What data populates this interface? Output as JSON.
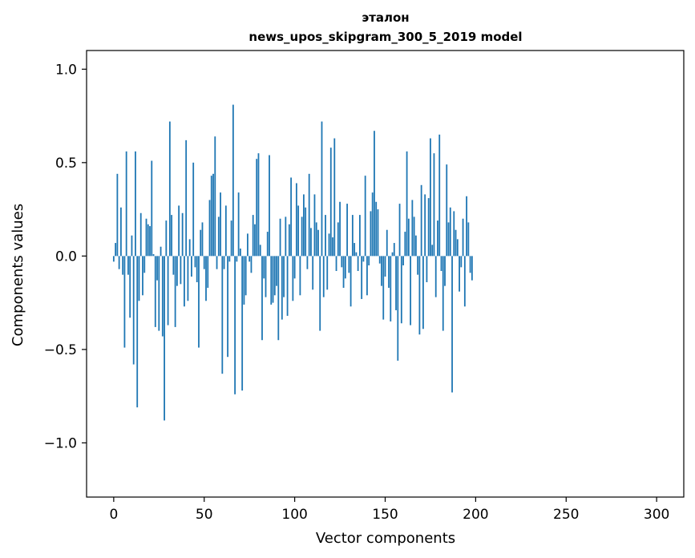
{
  "chart_data": {
    "type": "bar",
    "title": "эталон",
    "subtitle": "news_upos_skipgram_300_5_2019 model",
    "xlabel": "Vector components",
    "ylabel": "Components values",
    "xlim": [
      -15,
      315
    ],
    "ylim": [
      -1.29,
      1.1
    ],
    "xticks": [
      0,
      50,
      100,
      150,
      200,
      250,
      300
    ],
    "xtick_labels": [
      "0",
      "50",
      "100",
      "150",
      "200",
      "250",
      "300"
    ],
    "yticks": [
      1.0,
      0.5,
      0.0,
      -0.5,
      -1.0
    ],
    "ytick_labels": [
      "1.0",
      "0.5",
      "0.0",
      "−0.5",
      "−1.0"
    ],
    "grid": false,
    "legend": "none",
    "bar_color": "#1f77b4",
    "x_start": 0,
    "values": [
      -0.03,
      0.07,
      0.44,
      -0.07,
      0.26,
      -0.1,
      -0.49,
      0.56,
      -0.1,
      -0.33,
      0.11,
      -0.58,
      0.56,
      -0.81,
      -0.24,
      0.23,
      -0.21,
      -0.09,
      0.2,
      0.17,
      0.16,
      0.51,
      0.01,
      -0.38,
      -0.13,
      -0.4,
      0.05,
      -0.43,
      -0.88,
      0.19,
      -0.37,
      0.72,
      0.22,
      -0.1,
      -0.38,
      -0.16,
      0.27,
      -0.15,
      0.23,
      -0.27,
      0.62,
      -0.24,
      0.09,
      -0.11,
      0.5,
      -0.06,
      -0.14,
      -0.49,
      0.14,
      0.18,
      -0.07,
      -0.24,
      -0.17,
      0.3,
      0.43,
      0.44,
      0.64,
      -0.07,
      0.21,
      0.34,
      -0.63,
      -0.07,
      0.27,
      -0.54,
      -0.03,
      0.19,
      0.81,
      -0.74,
      -0.03,
      0.34,
      0.04,
      -0.72,
      -0.26,
      -0.21,
      0.12,
      -0.03,
      -0.09,
      0.22,
      0.17,
      0.52,
      0.55,
      0.06,
      -0.45,
      -0.12,
      -0.22,
      0.13,
      0.54,
      -0.26,
      -0.25,
      -0.21,
      -0.16,
      -0.45,
      0.2,
      -0.34,
      -0.22,
      0.21,
      -0.32,
      0.17,
      0.42,
      -0.24,
      -0.12,
      0.39,
      0.27,
      -0.21,
      0.21,
      0.33,
      0.26,
      -0.07,
      0.44,
      0.15,
      -0.18,
      0.33,
      0.18,
      0.14,
      -0.4,
      0.72,
      -0.22,
      0.22,
      -0.18,
      0.12,
      0.58,
      0.1,
      0.63,
      -0.08,
      0.18,
      0.29,
      -0.06,
      -0.17,
      -0.12,
      0.28,
      -0.09,
      -0.27,
      0.22,
      0.07,
      0.02,
      -0.08,
      0.22,
      -0.23,
      -0.03,
      0.43,
      -0.21,
      -0.05,
      0.24,
      0.34,
      0.67,
      0.29,
      0.25,
      -0.04,
      -0.16,
      -0.34,
      -0.11,
      0.14,
      -0.17,
      -0.35,
      0.02,
      0.07,
      -0.29,
      -0.56,
      0.28,
      -0.36,
      -0.05,
      0.13,
      0.56,
      0.2,
      -0.37,
      0.3,
      0.21,
      0.11,
      -0.1,
      -0.42,
      0.38,
      -0.39,
      0.33,
      -0.14,
      0.31,
      0.63,
      0.06,
      0.55,
      -0.22,
      0.19,
      0.65,
      -0.08,
      -0.4,
      -0.16,
      0.49,
      0.18,
      0.26,
      -0.73,
      0.24,
      0.14,
      0.09,
      -0.19,
      -0.06,
      0.2,
      -0.27,
      0.32,
      0.18,
      -0.09,
      -0.13
    ]
  }
}
